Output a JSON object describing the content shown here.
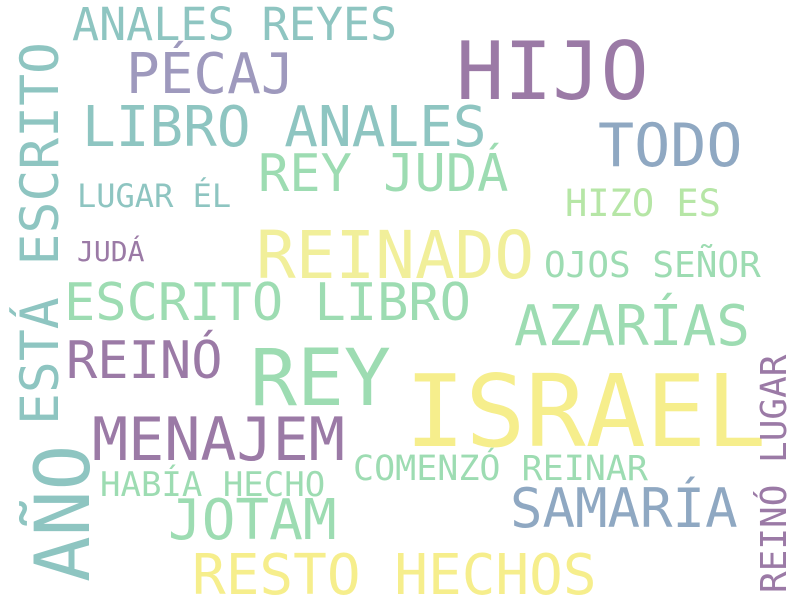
{
  "colors": {
    "background": "#ffffff",
    "purple": "#9b7aa6",
    "lavender": "#9e99bd",
    "teal": "#8ec5c1",
    "mint": "#9ddcb2",
    "slate": "#8fa8c2",
    "yellow": "#f6ee8c",
    "lightyellow": "#f1ef9a",
    "green": "#b6e6a6"
  },
  "words": {
    "hijo": "HIJO",
    "israel": "ISRAEL",
    "reinado": "REINADO",
    "rey": "REY",
    "ano": "AÑO",
    "esta_escrito": "ESTÁ ESCRITO",
    "anales_reyes": "ANALES REYES",
    "pecaj": "PÉCAJ",
    "libro_anales": "LIBRO ANALES",
    "todo": "TODO",
    "rey_juda": "REY JUDÁ",
    "lugar_el": "LUGAR ÉL",
    "hizo_es": "HIZO ES",
    "juda": "JUDÁ",
    "ojos_senor": "OJOS SEÑOR",
    "escrito_libro": "ESCRITO LIBRO",
    "azarias": "AZARÍAS",
    "reino": "REINÓ",
    "menajem": "MENAJEM",
    "comenzo_reinar": "COMENZÓ REINAR",
    "habia_hecho": "HABÍA HECHO",
    "samaria": "SAMARÍA",
    "jotam": "JOTAM",
    "resto_hechos": "RESTO HECHOS",
    "reino_lugar": "REINÓ LUGAR"
  }
}
